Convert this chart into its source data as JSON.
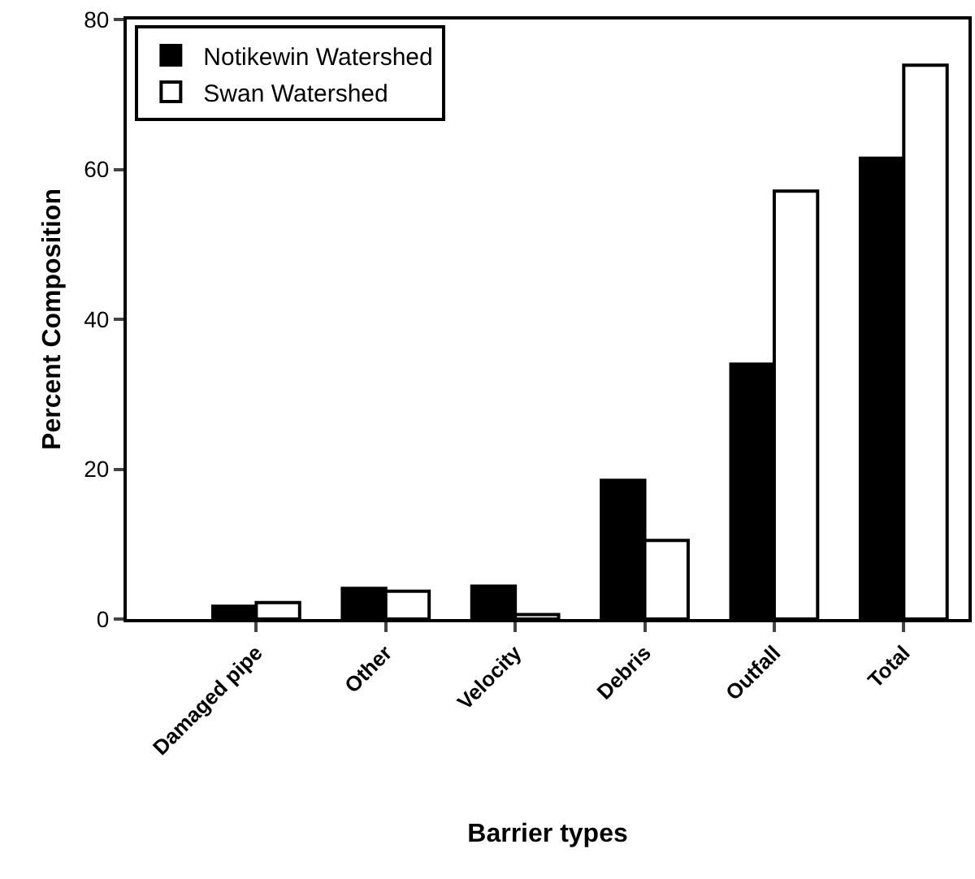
{
  "chart_data": {
    "type": "bar",
    "xlabel": "Barrier types",
    "ylabel": "Percent Composition",
    "categories": [
      "Damaged pipe",
      "Other",
      "Velocity",
      "Debris",
      "Outfall",
      "Total"
    ],
    "series": [
      {
        "name": "Notikewin Watershed",
        "color": "#000000",
        "values": [
          1.7,
          4.1,
          4.4,
          18.5,
          34.0,
          61.5
        ]
      },
      {
        "name": "Swan Watershed",
        "color": "#ffffff",
        "values": [
          2.2,
          3.7,
          0.6,
          10.5,
          57.1,
          73.9
        ]
      }
    ],
    "ylim": [
      0,
      80
    ],
    "yticks": [
      0,
      20,
      40,
      60,
      80
    ],
    "grid": false,
    "legend": "top left"
  }
}
